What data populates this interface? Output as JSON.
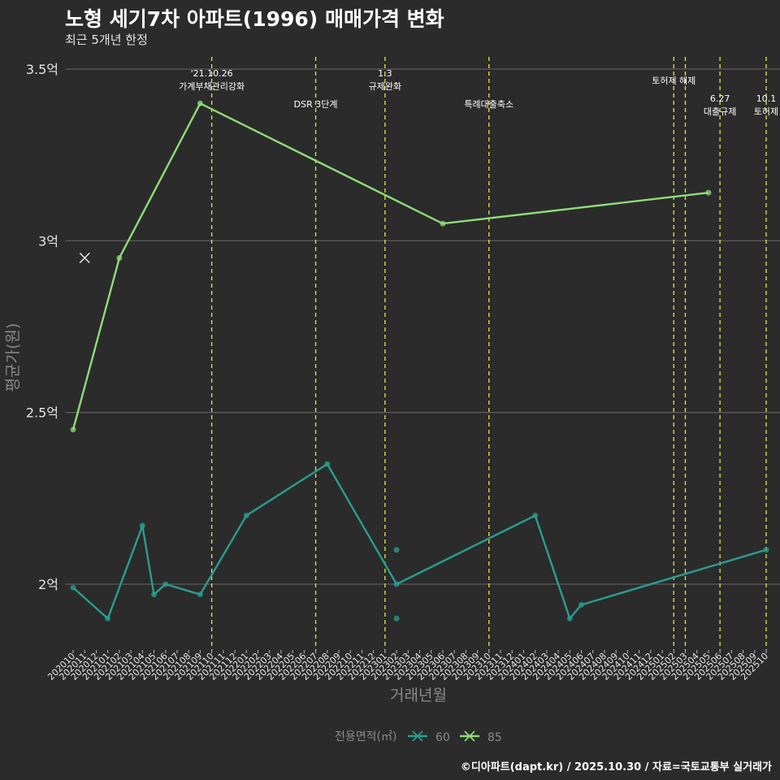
{
  "header": {
    "title": "노형 세기7차 아파트(1996) 매매가격 변화",
    "subtitle": "최근 5개년 한정"
  },
  "caption": "©디아파트(dapt.kr) / 2025.10.30 / 자료=국토교통부 실거래가",
  "colors": {
    "background": "#2b2b2b",
    "grid": "#5a5a5a",
    "series_60": "#2a9d8f",
    "series_85": "#8fdc7a",
    "policy_line": "#e6e64a"
  },
  "chart_data": {
    "type": "line",
    "title": "노형 세기7차 아파트(1996) 매매가격 변화",
    "subtitle": "최근 5개년 한정",
    "xlabel": "거래년월",
    "ylabel": "평균가(원)",
    "ylim": [
      1.85,
      3.53
    ],
    "yticks": [
      {
        "value": 2.0,
        "label": "2억"
      },
      {
        "value": 2.5,
        "label": "2.5억"
      },
      {
        "value": 3.0,
        "label": "3억"
      },
      {
        "value": 3.5,
        "label": "3.5억"
      }
    ],
    "categories": [
      "202010",
      "202011",
      "202012",
      "202101",
      "202102",
      "202103",
      "202104",
      "202105",
      "202106",
      "202107",
      "202108",
      "202109",
      "202110",
      "202111",
      "202112",
      "202201",
      "202202",
      "202203",
      "202204",
      "202205",
      "202206",
      "202207",
      "202208",
      "202209",
      "202210",
      "202211",
      "202212",
      "202301",
      "202302",
      "202303",
      "202304",
      "202305",
      "202306",
      "202307",
      "202308",
      "202309",
      "202310",
      "202311",
      "202312",
      "202401",
      "202402",
      "202403",
      "202404",
      "202405",
      "202406",
      "202407",
      "202408",
      "202409",
      "202410",
      "202411",
      "202412",
      "202501",
      "202502",
      "202503",
      "202504",
      "202505",
      "202506",
      "202507",
      "202508",
      "202509",
      "202510"
    ],
    "series": [
      {
        "name": "60",
        "marker": "x",
        "line": [
          {
            "x": "202010",
            "y": 1.99
          },
          {
            "x": "202101",
            "y": 1.9
          },
          {
            "x": "202104",
            "y": 2.17
          },
          {
            "x": "202105",
            "y": 1.97
          },
          {
            "x": "202106",
            "y": 2.0
          },
          {
            "x": "202109",
            "y": 1.97
          },
          {
            "x": "202201",
            "y": 2.2
          },
          {
            "x": "202208",
            "y": 2.35
          },
          {
            "x": "202302",
            "y": 2.0
          },
          {
            "x": "202402",
            "y": 2.2
          },
          {
            "x": "202405",
            "y": 1.9
          },
          {
            "x": "202406",
            "y": 1.94
          },
          {
            "x": "202510",
            "y": 2.1
          }
        ],
        "points": [
          {
            "x": "202010",
            "y": 1.99
          },
          {
            "x": "202101",
            "y": 1.9
          },
          {
            "x": "202104",
            "y": 2.17
          },
          {
            "x": "202105",
            "y": 1.97
          },
          {
            "x": "202106",
            "y": 2.0
          },
          {
            "x": "202109",
            "y": 1.97
          },
          {
            "x": "202201",
            "y": 2.2
          },
          {
            "x": "202208",
            "y": 2.35
          },
          {
            "x": "202302",
            "y": 2.1
          },
          {
            "x": "202302",
            "y": 2.0
          },
          {
            "x": "202302",
            "y": 1.9
          },
          {
            "x": "202402",
            "y": 2.2
          },
          {
            "x": "202405",
            "y": 1.9
          },
          {
            "x": "202406",
            "y": 1.94
          },
          {
            "x": "202510",
            "y": 2.1
          }
        ]
      },
      {
        "name": "85",
        "marker": "x",
        "line": [
          {
            "x": "202010",
            "y": 2.45
          },
          {
            "x": "202102",
            "y": 2.95
          },
          {
            "x": "202109",
            "y": 3.4
          },
          {
            "x": "202306",
            "y": 3.05
          },
          {
            "x": "202505",
            "y": 3.14
          }
        ],
        "points": [
          {
            "x": "202010",
            "y": 2.45
          },
          {
            "x": "202102",
            "y": 2.95
          },
          {
            "x": "202109",
            "y": 3.4
          },
          {
            "x": "202306",
            "y": 3.05
          },
          {
            "x": "202505",
            "y": 3.14
          }
        ],
        "cross_marks": [
          {
            "x": "202011",
            "y": 2.95
          }
        ]
      }
    ],
    "events": [
      {
        "x": "202110",
        "lines": [
          "'21.10.26",
          "가계부채관리강화"
        ]
      },
      {
        "x": "202207",
        "lines": [
          "DSR 3단계"
        ]
      },
      {
        "x": "202301",
        "lines": [
          "1.3",
          "규제완화"
        ]
      },
      {
        "x": "202310",
        "lines": [
          "특례대출축소"
        ]
      },
      {
        "x": "202502",
        "lines": [
          "토허제 해제"
        ]
      },
      {
        "x": "202503",
        "lines": []
      },
      {
        "x": "202506",
        "lines": [
          "6.27",
          "대출규제"
        ]
      },
      {
        "x": "202510",
        "lines": [
          "10.1",
          "토허제"
        ]
      }
    ],
    "legend": {
      "title": "전용면적(㎡)",
      "position": "bottom",
      "entries": [
        "60",
        "85"
      ]
    },
    "grid": true
  }
}
